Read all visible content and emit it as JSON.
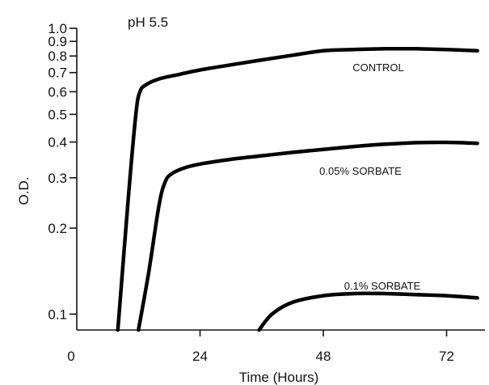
{
  "chart_data": {
    "type": "line",
    "annotation": "pH 5.5",
    "xlabel": "Time (Hours)",
    "ylabel": "O.D.",
    "xlim": [
      0,
      80
    ],
    "ylim": [
      0.088,
      1.0
    ],
    "yscale": "log",
    "x_ticks": [
      0,
      24,
      48,
      72
    ],
    "y_ticks": [
      1.0,
      0.9,
      0.8,
      0.7,
      0.6,
      0.5,
      0.4,
      0.3,
      0.2,
      0.1
    ],
    "y_tick_labels": [
      "1.0",
      "0.9",
      "0.8",
      "0.7",
      "0.6",
      "0.5",
      "0.4",
      "0.3",
      "0.2",
      "0.1"
    ],
    "grid": false,
    "legend": "none",
    "series": [
      {
        "name": "CONTROL",
        "color": "#000000",
        "x": [
          8.0,
          10.0,
          11.5,
          12.3,
          13.5,
          16,
          20,
          24,
          30,
          36,
          42,
          48,
          54,
          60,
          66,
          72,
          78
        ],
        "y": [
          0.088,
          0.25,
          0.5,
          0.6,
          0.635,
          0.665,
          0.69,
          0.715,
          0.745,
          0.775,
          0.805,
          0.835,
          0.843,
          0.848,
          0.848,
          0.843,
          0.835
        ]
      },
      {
        "name": "0.05% SORBATE",
        "color": "#000000",
        "x": [
          12.0,
          14.0,
          16.0,
          17.2,
          18.5,
          21,
          24,
          30,
          36,
          42,
          48,
          54,
          60,
          66,
          72,
          78
        ],
        "y": [
          0.088,
          0.14,
          0.24,
          0.29,
          0.31,
          0.325,
          0.335,
          0.348,
          0.358,
          0.368,
          0.377,
          0.386,
          0.393,
          0.398,
          0.399,
          0.396
        ]
      },
      {
        "name": "0.1% SORBATE",
        "color": "#000000",
        "x": [
          35.5,
          38,
          42,
          48,
          54,
          60,
          66,
          72,
          78
        ],
        "y": [
          0.088,
          0.1,
          0.11,
          0.116,
          0.118,
          0.118,
          0.117,
          0.116,
          0.114
        ]
      }
    ]
  }
}
